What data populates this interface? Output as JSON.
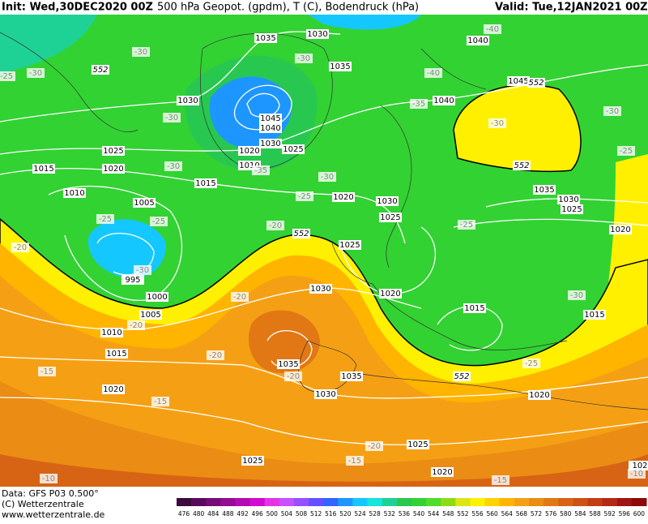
{
  "header": {
    "init": "Init: Wed,30DEC2020 00Z",
    "title": "500 hPa Geopot. (gpdm), T (C), Bodendruck (hPa)",
    "valid": "Valid: Tue,12JAN2021 00Z"
  },
  "footer": {
    "data": "Data: GFS P03 0.500°",
    "copyright": "(C) Wetterzentrale",
    "url": "www.wetterzentrale.de"
  },
  "scale": {
    "labels": [
      "476",
      "480",
      "484",
      "488",
      "492",
      "496",
      "500",
      "504",
      "508",
      "512",
      "516",
      "520",
      "524",
      "528",
      "532",
      "536",
      "540",
      "544",
      "548",
      "552",
      "556",
      "560",
      "564",
      "568",
      "572",
      "576",
      "580",
      "584",
      "588",
      "592",
      "596",
      "600"
    ],
    "colors": [
      "#3c0a3c",
      "#5a0a5a",
      "#780a78",
      "#960a96",
      "#b40ab4",
      "#d20ad2",
      "#e632e6",
      "#c850ff",
      "#9650ff",
      "#6450ff",
      "#3264ff",
      "#1e96ff",
      "#14c8ff",
      "#14e6dc",
      "#1ed296",
      "#28c850",
      "#32d232",
      "#50dc28",
      "#8cdc14",
      "#dce614",
      "#fff000",
      "#ffd200",
      "#ffb400",
      "#f5a014",
      "#eb8c14",
      "#e17814",
      "#d76414",
      "#cd5014",
      "#c33c14",
      "#b42814",
      "#a01414",
      "#8c0a0a"
    ]
  },
  "pressure_labels": [
    "1035",
    "1030",
    "1040",
    "1035",
    "1045",
    "1030",
    "1040",
    "1045",
    "1040",
    "1030",
    "1025",
    "1025",
    "1020",
    "1010",
    "1015",
    "1020",
    "1015",
    "1020",
    "1035",
    "1030",
    "1025",
    "1010",
    "1005",
    "1030",
    "1025",
    "1020",
    "1025",
    "995",
    "1000",
    "1005",
    "1010",
    "1030",
    "1020",
    "1015",
    "1015",
    "1015",
    "1035",
    "1035",
    "1020",
    "1030",
    "1020",
    "1025",
    "1020",
    "1025",
    "102"
  ],
  "temperature_labels": [
    "-30",
    "-30",
    "-30",
    "-30",
    "-40",
    "-35",
    "-30",
    "-30",
    "-25",
    "-30",
    "-35",
    "-30",
    "-25",
    "-25",
    "-25",
    "-20",
    "-30",
    "-25",
    "-20",
    "-20",
    "-30",
    "-20",
    "-20",
    "-20",
    "-25",
    "-15",
    "-15",
    "-20",
    "-15",
    "-15",
    "-10",
    "-10",
    "-40",
    "-25"
  ],
  "contour_552_labels": [
    "552",
    "552",
    "552",
    "552",
    "552"
  ]
}
